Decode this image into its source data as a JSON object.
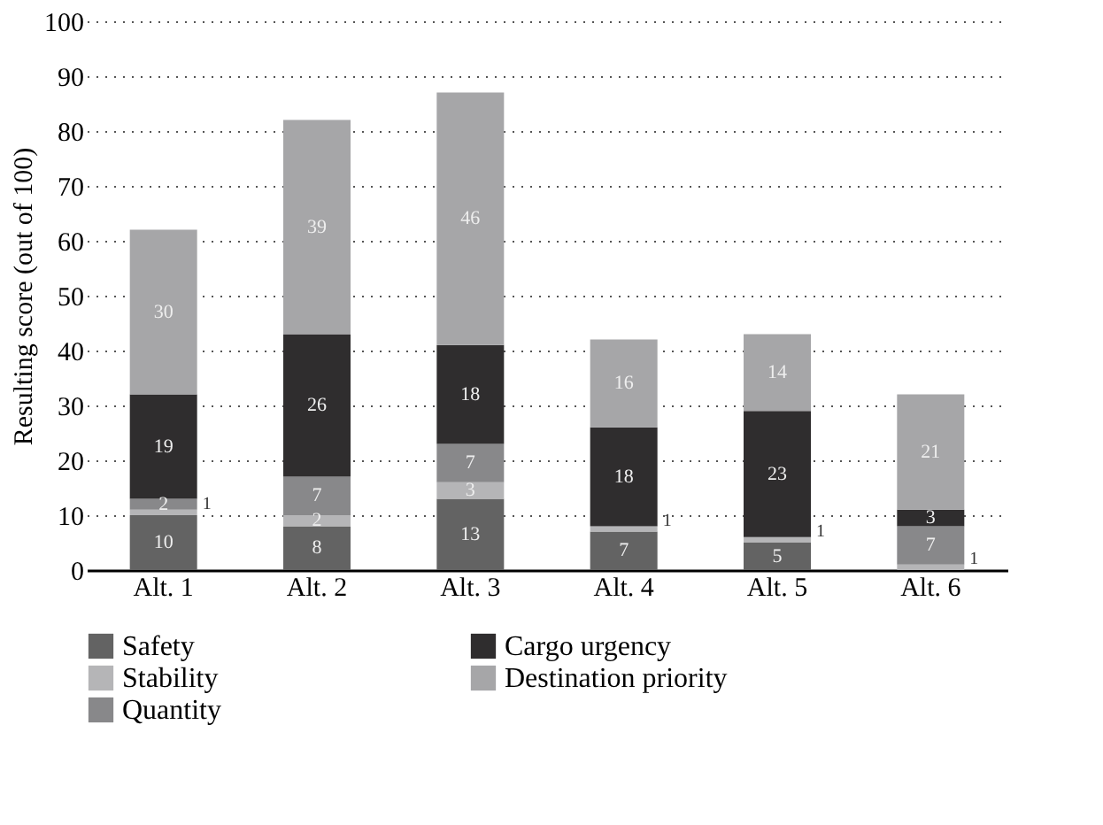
{
  "chart_data": {
    "type": "bar",
    "stacked": true,
    "ylabel": "Resulting score (out of 100)",
    "categories": [
      "Alt. 1",
      "Alt. 2",
      "Alt. 3",
      "Alt. 4",
      "Alt. 5",
      "Alt. 6"
    ],
    "series": [
      {
        "name": "Safety",
        "color": "#636363",
        "values": [
          10,
          8,
          13,
          7,
          5,
          0
        ],
        "value_labels": [
          "10",
          "8",
          "13",
          "7",
          "5",
          null
        ]
      },
      {
        "name": "Stability",
        "color": "#b5b5b7",
        "values": [
          1,
          2,
          3,
          1,
          1,
          1
        ],
        "value_labels": [
          "1",
          "2",
          "3",
          "1",
          "1",
          "1"
        ]
      },
      {
        "name": "Quantity",
        "color": "#88888a",
        "values": [
          2,
          7,
          7,
          0,
          0,
          7
        ],
        "value_labels": [
          "2",
          "7",
          "7",
          null,
          null,
          "7"
        ]
      },
      {
        "name": "Cargo urgency",
        "color": "#2f2d2e",
        "values": [
          19,
          26,
          18,
          18,
          23,
          3
        ],
        "value_labels": [
          "19",
          "26",
          "18",
          "18",
          "23",
          "3"
        ]
      },
      {
        "name": "Destination priority",
        "color": "#a6a6a8",
        "values": [
          30,
          39,
          46,
          16,
          14,
          21
        ],
        "value_labels": [
          "30",
          "39",
          "46",
          "16",
          "14",
          "21"
        ]
      }
    ],
    "ylim": [
      0,
      100
    ],
    "yticks": [
      0,
      10,
      20,
      30,
      40,
      50,
      60,
      70,
      80,
      90,
      100
    ],
    "grid": "y",
    "legend": "bottom"
  }
}
